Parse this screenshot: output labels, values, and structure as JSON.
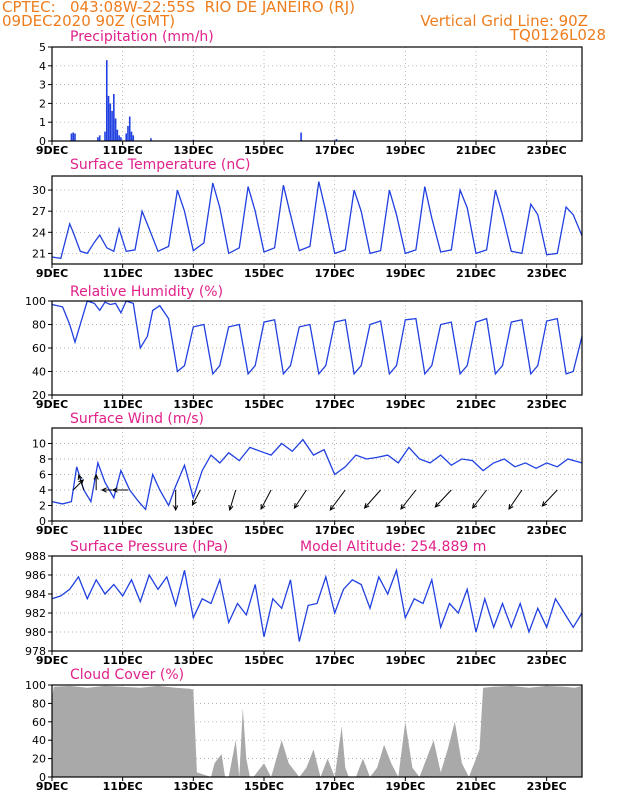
{
  "header": {
    "line1": "CPTEC:   043:08W-22:55S  RIO DE JANEIRO (RJ)",
    "line2": "09DEC2020 90Z (GMT)",
    "grid_note": "Vertical Grid Line: 90Z",
    "code": "TQ0126L028"
  },
  "colors": {
    "header": "#ee7d1d",
    "title": "#e0218a",
    "series": "#2140e0",
    "cloud": "#a9a9a9",
    "grid": "#9a9a9a"
  },
  "x_axis": {
    "ticks": [
      "9DEC",
      "11DEC",
      "13DEC",
      "15DEC",
      "17DEC",
      "19DEC",
      "21DEC",
      "23DEC"
    ],
    "tick_days": [
      0,
      2,
      4,
      6,
      8,
      10,
      12,
      14
    ],
    "range_days": [
      0,
      15
    ]
  },
  "panels": [
    {
      "id": "precip",
      "title": "Precipitation (mm/h)"
    },
    {
      "id": "temp",
      "title": "Surface Temperature (nC)"
    },
    {
      "id": "rh",
      "title": "Relative Humidity (%)"
    },
    {
      "id": "wind",
      "title": "Surface Wind (m/s)"
    },
    {
      "id": "pres",
      "title": "Surface Pressure (hPa)",
      "extra": "Model Altitude: 254.889  m"
    },
    {
      "id": "cloud",
      "title": "Cloud Cover (%)"
    }
  ],
  "chart_data": [
    {
      "type": "bar",
      "title": "Precipitation (mm/h)",
      "ylim": [
        0,
        5
      ],
      "yticks": [
        0,
        1,
        2,
        3,
        4,
        5
      ],
      "x": [
        0.55,
        0.6,
        0.65,
        1.3,
        1.35,
        1.5,
        1.55,
        1.6,
        1.65,
        1.7,
        1.75,
        1.8,
        1.85,
        1.9,
        1.95,
        2.1,
        2.15,
        2.2,
        2.25,
        2.3,
        2.8,
        4.0,
        7.05,
        8.05
      ],
      "values": [
        0.4,
        0.45,
        0.4,
        0.2,
        0.3,
        0.5,
        4.3,
        2.4,
        2.0,
        1.6,
        2.5,
        1.2,
        0.6,
        0.3,
        0.2,
        0.4,
        0.8,
        1.3,
        0.5,
        0.3,
        0.15,
        0.05,
        0.45,
        0.1
      ]
    },
    {
      "type": "line",
      "title": "Surface Temperature (nC)",
      "ylim": [
        19.5,
        32
      ],
      "yticks": [
        21,
        24,
        27,
        30
      ],
      "x": [
        0,
        0.25,
        0.5,
        0.6,
        0.8,
        1.0,
        1.2,
        1.35,
        1.55,
        1.75,
        1.9,
        2.1,
        2.35,
        2.55,
        2.75,
        3.0,
        3.3,
        3.55,
        3.75,
        4.0,
        4.3,
        4.55,
        4.75,
        5.0,
        5.3,
        5.55,
        5.75,
        6.0,
        6.3,
        6.55,
        6.75,
        7.0,
        7.3,
        7.55,
        7.75,
        8.0,
        8.3,
        8.55,
        8.75,
        9.0,
        9.3,
        9.55,
        9.75,
        10.0,
        10.3,
        10.55,
        10.75,
        11.0,
        11.3,
        11.55,
        11.75,
        12.0,
        12.3,
        12.55,
        12.75,
        13.0,
        13.3,
        13.55,
        13.75,
        14.0,
        14.3,
        14.55,
        14.75,
        15.0
      ],
      "values": [
        20.5,
        20.3,
        25.2,
        24.0,
        21.3,
        21.0,
        22.6,
        23.6,
        21.8,
        21.3,
        24.5,
        21.3,
        21.5,
        27.0,
        24.5,
        21.3,
        22.0,
        30.0,
        27.0,
        21.4,
        22.5,
        31.0,
        27.5,
        21.0,
        21.8,
        30.5,
        27.0,
        21.2,
        21.8,
        30.7,
        26.5,
        21.4,
        22.0,
        31.2,
        27.0,
        21.0,
        21.5,
        30.0,
        27.0,
        21.0,
        21.4,
        30.0,
        26.5,
        21.0,
        21.5,
        30.5,
        26.0,
        21.2,
        21.5,
        30.0,
        27.5,
        21.0,
        21.5,
        30.0,
        26.5,
        21.3,
        21.0,
        28.0,
        26.5,
        20.8,
        21.0,
        27.6,
        26.5,
        23.5
      ]
    },
    {
      "type": "line",
      "title": "Relative Humidity (%)",
      "ylim": [
        20,
        100
      ],
      "yticks": [
        20,
        40,
        60,
        80,
        100
      ],
      "x": [
        0,
        0.3,
        0.5,
        0.65,
        0.85,
        1.0,
        1.2,
        1.35,
        1.5,
        1.65,
        1.8,
        1.95,
        2.1,
        2.3,
        2.5,
        2.7,
        2.85,
        3.05,
        3.3,
        3.55,
        3.75,
        4.0,
        4.3,
        4.55,
        4.75,
        5.0,
        5.3,
        5.55,
        5.75,
        6.0,
        6.3,
        6.55,
        6.75,
        7.0,
        7.3,
        7.55,
        7.75,
        8.0,
        8.3,
        8.55,
        8.75,
        9.0,
        9.3,
        9.55,
        9.75,
        10.0,
        10.3,
        10.55,
        10.75,
        11.0,
        11.3,
        11.55,
        11.75,
        12.0,
        12.3,
        12.55,
        12.75,
        13.0,
        13.3,
        13.55,
        13.75,
        14.0,
        14.3,
        14.55,
        14.75,
        15.0
      ],
      "values": [
        97,
        95,
        80,
        65,
        85,
        100,
        98,
        92,
        99,
        97,
        98,
        90,
        100,
        98,
        60,
        70,
        92,
        96,
        85,
        40,
        45,
        78,
        80,
        38,
        45,
        78,
        80,
        38,
        45,
        82,
        84,
        38,
        45,
        78,
        80,
        38,
        45,
        82,
        84,
        38,
        45,
        80,
        83,
        38,
        45,
        84,
        85,
        38,
        45,
        80,
        82,
        38,
        45,
        82,
        85,
        38,
        45,
        82,
        84,
        38,
        45,
        83,
        85,
        38,
        40,
        70
      ]
    },
    {
      "type": "line",
      "title": "Surface Wind (m/s)",
      "ylim": [
        0,
        12
      ],
      "yticks": [
        0,
        2,
        4,
        6,
        8,
        10
      ],
      "x": [
        0,
        0.3,
        0.55,
        0.7,
        0.9,
        1.1,
        1.3,
        1.5,
        1.75,
        1.95,
        2.2,
        2.45,
        2.65,
        2.85,
        3.05,
        3.3,
        3.5,
        3.75,
        4.0,
        4.25,
        4.5,
        4.75,
        5.0,
        5.3,
        5.6,
        5.9,
        6.2,
        6.5,
        6.8,
        7.1,
        7.4,
        7.7,
        8.0,
        8.3,
        8.6,
        8.9,
        9.2,
        9.5,
        9.8,
        10.1,
        10.4,
        10.7,
        11.0,
        11.3,
        11.6,
        11.9,
        12.2,
        12.5,
        12.8,
        13.1,
        13.4,
        13.7,
        14.0,
        14.3,
        14.6,
        15.0
      ],
      "values": [
        2.5,
        2.2,
        2.5,
        7.0,
        4.0,
        2.5,
        7.5,
        5.0,
        3.0,
        6.5,
        4.0,
        2.5,
        1.5,
        6.0,
        4.0,
        2.0,
        4.5,
        7.2,
        3.0,
        6.5,
        8.5,
        7.5,
        8.8,
        7.8,
        9.5,
        9.0,
        8.5,
        10.0,
        9.0,
        10.5,
        8.5,
        9.2,
        6.0,
        7.0,
        8.5,
        8.0,
        8.2,
        8.5,
        7.5,
        9.5,
        8.0,
        7.5,
        8.5,
        7.2,
        8.0,
        7.8,
        6.5,
        7.5,
        8.0,
        7.0,
        7.5,
        6.8,
        7.5,
        7.0,
        8.0,
        7.5
      ],
      "arrows": {
        "x": [
          0.6,
          0.9,
          1.25,
          1.7,
          2.15,
          3.5,
          4.2,
          5.2,
          6.2,
          7.2,
          8.3,
          9.3,
          10.3,
          11.3,
          12.3,
          13.3,
          14.3
        ],
        "u": [
          1.0,
          -0.5,
          0.0,
          -1.0,
          -1.5,
          0.0,
          -0.8,
          -0.6,
          -1.0,
          -1.2,
          -1.5,
          -1.6,
          -1.5,
          -1.6,
          -1.4,
          -1.3,
          -1.5
        ],
        "v": [
          1.0,
          1.5,
          1.5,
          0.0,
          0.0,
          -2.0,
          -1.5,
          -2.0,
          -1.9,
          -1.8,
          -2.0,
          -1.8,
          -1.9,
          -1.7,
          -1.8,
          -1.9,
          -1.6
        ]
      }
    },
    {
      "type": "line",
      "title": "Surface Pressure (hPa)",
      "ylim": [
        978,
        988
      ],
      "yticks": [
        978,
        980,
        982,
        984,
        986,
        988
      ],
      "x": [
        0,
        0.25,
        0.5,
        0.75,
        1.0,
        1.25,
        1.5,
        1.75,
        2.0,
        2.25,
        2.5,
        2.75,
        3.0,
        3.25,
        3.5,
        3.75,
        4.0,
        4.25,
        4.5,
        4.75,
        5.0,
        5.25,
        5.5,
        5.75,
        6.0,
        6.25,
        6.5,
        6.75,
        7.0,
        7.25,
        7.5,
        7.75,
        8.0,
        8.25,
        8.5,
        8.75,
        9.0,
        9.25,
        9.5,
        9.75,
        10.0,
        10.25,
        10.5,
        10.75,
        11.0,
        11.25,
        11.5,
        11.75,
        12.0,
        12.25,
        12.5,
        12.75,
        13.0,
        13.25,
        13.5,
        13.75,
        14.0,
        14.25,
        14.5,
        14.75,
        15.0
      ],
      "values": [
        983.5,
        983.8,
        984.5,
        985.8,
        983.5,
        985.5,
        984.0,
        985.0,
        983.8,
        985.5,
        983.2,
        986.0,
        984.5,
        985.8,
        982.8,
        986.5,
        981.5,
        983.5,
        983.0,
        985.5,
        981.0,
        983.0,
        981.8,
        985.0,
        979.5,
        983.5,
        982.5,
        985.5,
        979.0,
        982.8,
        983.0,
        985.8,
        982.0,
        984.5,
        985.5,
        985.0,
        982.5,
        985.8,
        984.0,
        986.5,
        981.5,
        983.5,
        983.0,
        985.5,
        980.5,
        983.0,
        982.0,
        984.5,
        980.0,
        983.5,
        980.5,
        983.0,
        980.5,
        983.0,
        980.0,
        982.5,
        980.5,
        983.5,
        982.0,
        980.5,
        982.0
      ]
    },
    {
      "type": "area",
      "title": "Cloud Cover (%)",
      "ylim": [
        0,
        100
      ],
      "yticks": [
        0,
        20,
        40,
        60,
        80,
        100
      ],
      "x": [
        0,
        0.05,
        0.5,
        1.0,
        1.5,
        2.0,
        2.5,
        3.0,
        3.5,
        3.9,
        4.0,
        4.1,
        4.5,
        4.6,
        4.8,
        4.9,
        5.0,
        5.2,
        5.3,
        5.4,
        5.5,
        5.6,
        5.7,
        6.0,
        6.2,
        6.5,
        6.7,
        7.0,
        7.2,
        7.4,
        7.6,
        7.8,
        8.0,
        8.2,
        8.3,
        8.4,
        8.6,
        8.8,
        9.0,
        9.2,
        9.4,
        9.6,
        9.8,
        10.0,
        10.2,
        10.4,
        10.6,
        10.8,
        11.0,
        11.2,
        11.4,
        11.6,
        11.8,
        12.0,
        12.1,
        12.2,
        12.5,
        13.0,
        13.5,
        14.0,
        14.5,
        14.8,
        15.0
      ],
      "values": [
        85,
        98,
        99,
        97,
        99,
        98,
        97,
        99,
        97,
        96,
        95,
        5,
        0,
        15,
        25,
        0,
        0,
        40,
        0,
        75,
        20,
        0,
        0,
        15,
        0,
        40,
        15,
        0,
        10,
        30,
        0,
        20,
        0,
        55,
        10,
        0,
        0,
        20,
        0,
        10,
        35,
        15,
        0,
        60,
        10,
        0,
        20,
        40,
        5,
        30,
        60,
        15,
        0,
        20,
        30,
        97,
        98,
        99,
        97,
        99,
        98,
        97,
        99
      ]
    }
  ]
}
